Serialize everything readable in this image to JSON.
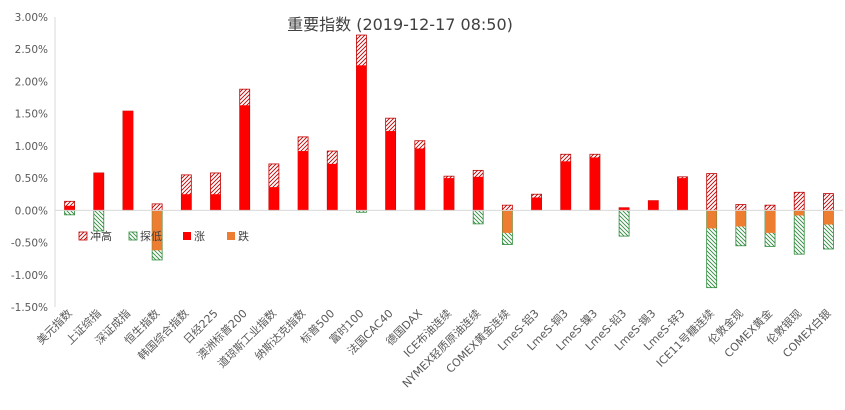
{
  "chart_data": {
    "type": "bar",
    "title": "重要指数 (2019-12-17 08:50)",
    "ylim": [
      -1.5,
      3.0
    ],
    "yticks": [
      "3.00%",
      "2.50%",
      "2.00%",
      "1.50%",
      "1.00%",
      "0.50%",
      "0.00%",
      "-0.50%",
      "-1.00%",
      "-1.50%"
    ],
    "grid": false,
    "legend_position": "left-middle",
    "legend": [
      {
        "key": "high",
        "label": "冲高"
      },
      {
        "key": "low",
        "label": "探低"
      },
      {
        "key": "up",
        "label": "涨"
      },
      {
        "key": "down",
        "label": "跌"
      }
    ],
    "colors": {
      "up": "#ff0000",
      "down": "#ed7d31",
      "high": "#c00000",
      "low": "#2e8b3c"
    },
    "categories": [
      "美元指数",
      "上证综指",
      "深证成指",
      "恒生指数",
      "韩国综合指数",
      "日经225",
      "澳洲标普200",
      "道琼斯工业指数",
      "纳斯达克指数",
      "标普500",
      "富时100",
      "法国CAC40",
      "德国DAX",
      "ICE布油连续",
      "NYMEX轻质原油连续",
      "COMEX黄金连续",
      "LmeS-铝3",
      "LmeS-铜3",
      "LmeS-镍3",
      "LmeS-铅3",
      "LmeS-锡3",
      "LmeS-锌3",
      "ICE11号糖连续",
      "伦敦金现",
      "COMEX黄金",
      "伦敦银现",
      "COMEX白银"
    ],
    "series": [
      {
        "name": "涨",
        "key": "up",
        "values": [
          0.07,
          0.58,
          1.54,
          0,
          0.25,
          0.25,
          1.63,
          0.36,
          0.92,
          0.72,
          2.25,
          1.23,
          0.96,
          0.5,
          0.52,
          0,
          0.2,
          0.76,
          0.82,
          0.04,
          0.15,
          0.5,
          0,
          0,
          0,
          0,
          0
        ]
      },
      {
        "name": "跌",
        "key": "down",
        "values": [
          0,
          0,
          0,
          -0.62,
          0,
          0,
          0,
          0,
          0,
          0,
          0,
          0,
          0,
          0,
          0,
          -0.35,
          0,
          0,
          0,
          0,
          0,
          0,
          -0.28,
          -0.25,
          -0.35,
          -0.08,
          -0.22
        ]
      },
      {
        "name": "冲高",
        "key": "high",
        "values": [
          0.14,
          0.58,
          1.54,
          0.1,
          0.55,
          0.58,
          1.88,
          0.72,
          1.14,
          0.92,
          2.72,
          1.43,
          1.08,
          0.53,
          0.62,
          0.08,
          0.25,
          0.87,
          0.87,
          0.04,
          0.15,
          0.52,
          0.57,
          0.09,
          0.08,
          0.28,
          0.26
        ]
      },
      {
        "name": "探低",
        "key": "low",
        "values": [
          -0.07,
          -0.32,
          0,
          -0.77,
          0,
          0,
          0,
          0,
          0,
          0,
          -0.03,
          0,
          0,
          0,
          -0.21,
          -0.53,
          0,
          0,
          0,
          -0.4,
          0,
          0,
          -1.2,
          -0.55,
          -0.56,
          -0.68,
          -0.6
        ]
      }
    ]
  }
}
